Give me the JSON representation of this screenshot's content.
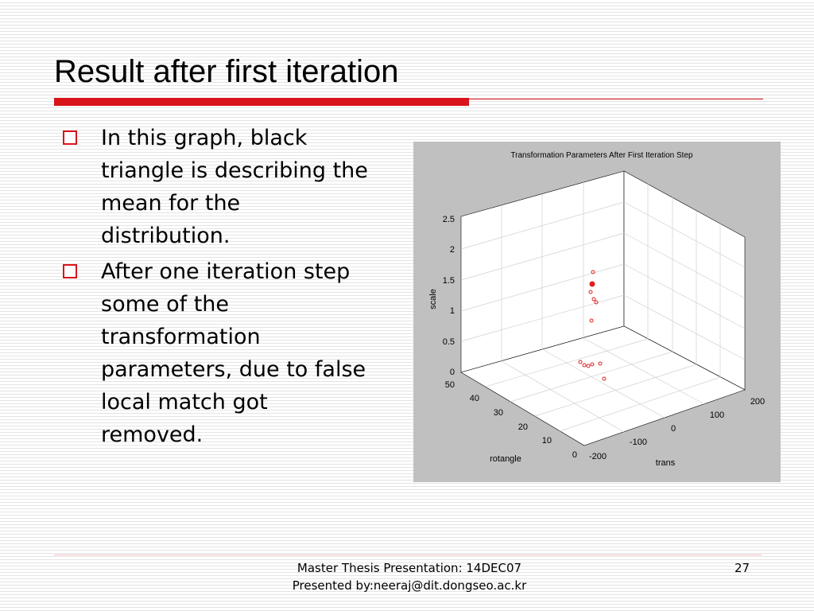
{
  "title": "Result after first iteration",
  "bullets": [
    "In this graph, black triangle is describing the mean for the distribution.",
    "After one iteration step some of the transformation parameters, due to false local match got removed."
  ],
  "figure": {
    "title": "Transformation Parameters After First Iteration Step",
    "z_label": "scale",
    "y_label": "rotangle",
    "x_label": "trans",
    "zticks": [
      "0",
      "0.5",
      "1",
      "1.5",
      "2",
      "2.5"
    ],
    "yticks": [
      "50",
      "40",
      "30",
      "20",
      "10",
      "0"
    ],
    "xticks": [
      "-200",
      "-100",
      "0",
      "100",
      "200"
    ]
  },
  "footer": {
    "line1": "Master Thesis Presentation: 14DEC07",
    "line2": "Presented by:neeraj@dit.dongseo.ac.kr",
    "page": "27"
  }
}
